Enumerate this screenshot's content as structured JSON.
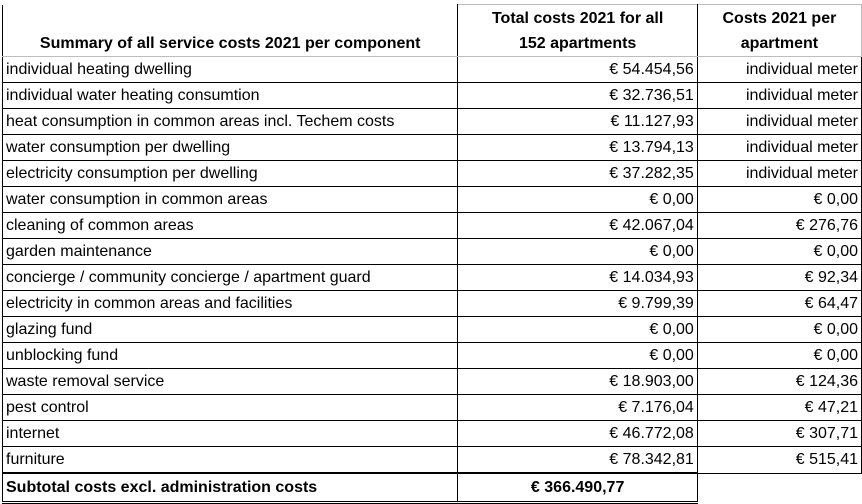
{
  "header": {
    "component_title": "Summary of all service costs 2021 per component",
    "total_title_line1": "Total costs 2021 for all",
    "total_title_line2": "152 apartments",
    "per_title_line1": "Costs 2021 per",
    "per_title_line2": "apartment"
  },
  "rows": [
    {
      "component": "individual heating dwelling",
      "total": "€ 54.454,56",
      "per": "individual meter"
    },
    {
      "component": "individual water heating consumtion",
      "total": "€ 32.736,51",
      "per": "individual meter"
    },
    {
      "component": "heat consumption in common areas incl. Techem costs",
      "total": "€ 11.127,93",
      "per": "individual meter"
    },
    {
      "component": "water consumption per dwelling",
      "total": "€ 13.794,13",
      "per": "individual meter"
    },
    {
      "component": "electricity consumption per dwelling",
      "total": "€ 37.282,35",
      "per": "individual meter"
    },
    {
      "component": "water consumption in common areas",
      "total": "€ 0,00",
      "per": "€ 0,00"
    },
    {
      "component": "cleaning of common areas",
      "total": "€ 42.067,04",
      "per": "€ 276,76"
    },
    {
      "component": "garden maintenance",
      "total": "€ 0,00",
      "per": "€ 0,00"
    },
    {
      "component": "concierge / community concierge / apartment guard",
      "total": "€ 14.034,93",
      "per": "€ 92,34"
    },
    {
      "component": "electricity in common areas and facilities",
      "total": "€ 9.799,39",
      "per": "€ 64,47"
    },
    {
      "component": "glazing fund",
      "total": "€ 0,00",
      "per": "€ 0,00"
    },
    {
      "component": "unblocking fund",
      "total": "€ 0,00",
      "per": "€ 0,00"
    },
    {
      "component": "waste removal service",
      "total": "€ 18.903,00",
      "per": "€ 124,36"
    },
    {
      "component": "pest control",
      "total": "€ 7.176,04",
      "per": "€ 47,21"
    },
    {
      "component": "internet",
      "total": "€ 46.772,08",
      "per": "€ 307,71"
    },
    {
      "component": "furniture",
      "total": "€ 78.342,81",
      "per": "€ 515,41"
    }
  ],
  "subtotal": {
    "label": "Subtotal costs excl. administration costs",
    "total": "€ 366.490,77"
  }
}
